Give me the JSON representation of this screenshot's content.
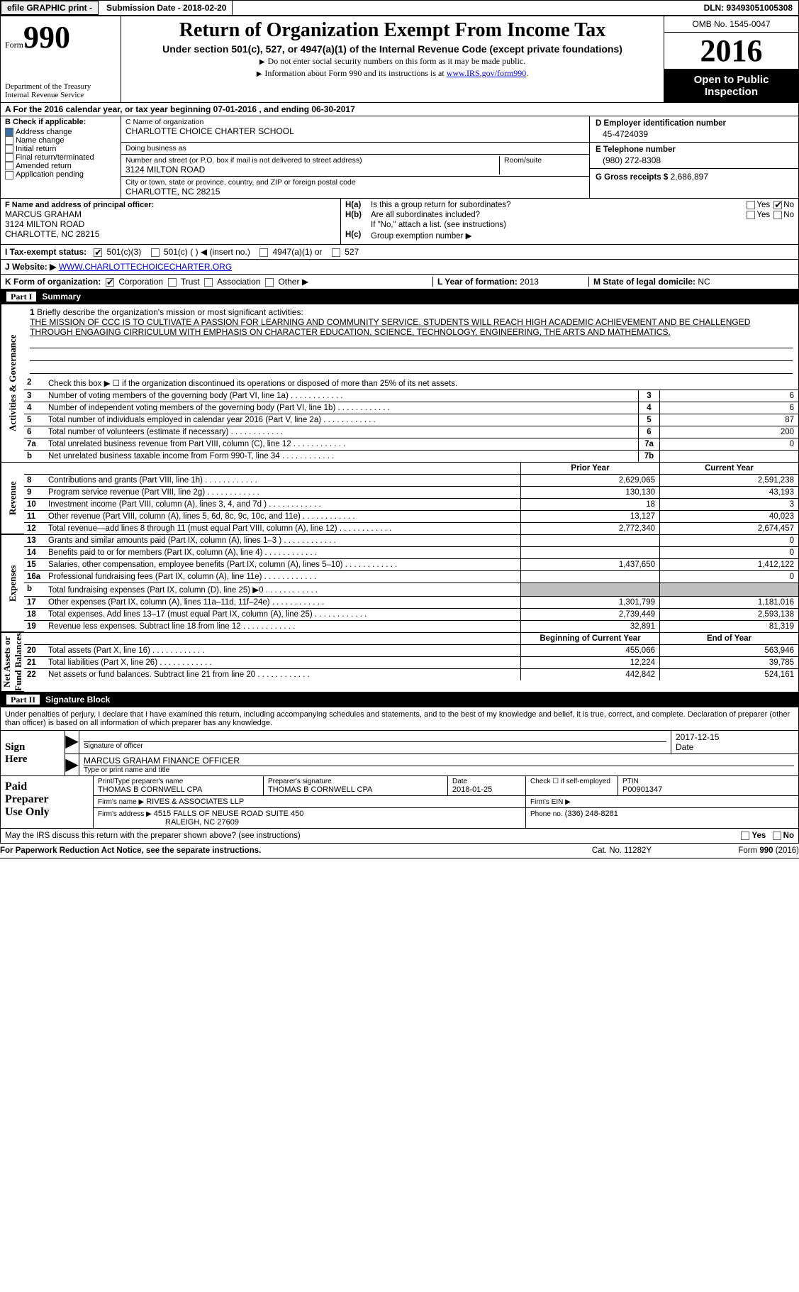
{
  "topbar": {
    "efile": "efile GRAPHIC print -",
    "submission": "Submission Date - 2018-02-20",
    "dln": "DLN: 93493051005308"
  },
  "header": {
    "form_word": "Form",
    "form_num": "990",
    "dept1": "Department of the Treasury",
    "dept2": "Internal Revenue Service",
    "title": "Return of Organization Exempt From Income Tax",
    "sub1": "Under section 501(c), 527, or 4947(a)(1) of the Internal Revenue Code (except private foundations)",
    "sub2a": "Do not enter social security numbers on this form as it may be made public.",
    "sub2b_pre": "Information about Form 990 and its instructions is at ",
    "sub2b_link": "www.IRS.gov/form990",
    "omb": "OMB No. 1545-0047",
    "year": "2016",
    "otp1": "Open to Public",
    "otp2": "Inspection"
  },
  "row_a": "A  For the 2016 calendar year, or tax year beginning 07-01-2016   , and ending 06-30-2017",
  "col_b": {
    "label": "B Check if applicable:",
    "opts": [
      "Address change",
      "Name change",
      "Initial return",
      "Final return/terminated",
      "Amended return",
      "Application pending"
    ],
    "checked_idx": 0
  },
  "col_c": {
    "name_hint": "C Name of organization",
    "name": "CHARLOTTE CHOICE CHARTER SCHOOL",
    "dba_hint": "Doing business as",
    "dba": "",
    "street_hint": "Number and street (or P.O. box if mail is not delivered to street address)",
    "street": "3124 MILTON ROAD",
    "room_hint": "Room/suite",
    "city_hint": "City or town, state or province, country, and ZIP or foreign postal code",
    "city": "CHARLOTTE, NC  28215"
  },
  "col_d": {
    "ein_lbl": "D Employer identification number",
    "ein": "45-4724039",
    "tel_lbl": "E Telephone number",
    "tel": "(980) 272-8308",
    "gross_lbl": "G Gross receipts $",
    "gross": "2,686,897"
  },
  "col_f": {
    "lbl": "F Name and address of principal officer:",
    "l1": "MARCUS GRAHAM",
    "l2": "3124 MILTON ROAD",
    "l3": "CHARLOTTE, NC  28215"
  },
  "col_h": {
    "ha_lbl": "H(a)",
    "ha_txt": "Is this a group return for subordinates?",
    "hb_lbl": "H(b)",
    "hb_txt": "Are all subordinates included?",
    "h_note": "If \"No,\" attach a list. (see instructions)",
    "hc_lbl": "H(c)",
    "hc_txt": "Group exemption number ▶",
    "yes": "Yes",
    "no": "No"
  },
  "row_i": {
    "lbl": "I   Tax-exempt status:",
    "o1": "501(c)(3)",
    "o2": "501(c) (   ) ◀ (insert no.)",
    "o3": "4947(a)(1) or",
    "o4": "527"
  },
  "row_j": {
    "lbl": "J  Website: ▶",
    "url": "WWW.CHARLOTTECHOICECHARTER.ORG"
  },
  "row_k": {
    "lbl": "K Form of organization:",
    "o1": "Corporation",
    "o2": "Trust",
    "o3": "Association",
    "o4": "Other ▶",
    "l_lbl": "L Year of formation:",
    "l_val": "2013",
    "m_lbl": "M State of legal domicile:",
    "m_val": "NC"
  },
  "part1": {
    "num": "Part I",
    "title": "Summary"
  },
  "sides": {
    "ag": "Activities & Governance",
    "rev": "Revenue",
    "exp": "Expenses",
    "na": "Net Assets or\nFund Balances"
  },
  "mission": {
    "num": "1",
    "lbl": "Briefly describe the organization's mission or most significant activities:",
    "txt": "THE MISSION OF CCC IS TO CULTIVATE A PASSION FOR LEARNING AND COMMUNITY SERVICE. STUDENTS WILL REACH HIGH ACADEMIC ACHIEVEMENT AND BE CHALLENGED THROUGH ENGAGING CIRRICULUM WITH EMPHASIS ON CHARACTER EDUCATION, SCIENCE, TECHNOLOGY, ENGINEERING, THE ARTS AND MATHEMATICS."
  },
  "lines_ag": [
    {
      "n": "2",
      "t": "Check this box ▶ ☐  if the organization discontinued its operations or disposed of more than 25% of its net assets.",
      "box": "",
      "v": ""
    },
    {
      "n": "3",
      "t": "Number of voting members of the governing body (Part VI, line 1a)",
      "box": "3",
      "v": "6"
    },
    {
      "n": "4",
      "t": "Number of independent voting members of the governing body (Part VI, line 1b)",
      "box": "4",
      "v": "6"
    },
    {
      "n": "5",
      "t": "Total number of individuals employed in calendar year 2016 (Part V, line 2a)",
      "box": "5",
      "v": "87"
    },
    {
      "n": "6",
      "t": "Total number of volunteers (estimate if necessary)",
      "box": "6",
      "v": "200"
    },
    {
      "n": "7a",
      "t": "Total unrelated business revenue from Part VIII, column (C), line 12",
      "box": "7a",
      "v": "0"
    },
    {
      "n": "b",
      "t": "Net unrelated business taxable income from Form 990-T, line 34",
      "box": "7b",
      "v": ""
    }
  ],
  "colhdr": {
    "c1": "Prior Year",
    "c2": "Current Year"
  },
  "lines_rev": [
    {
      "n": "8",
      "t": "Contributions and grants (Part VIII, line 1h)",
      "p": "2,629,065",
      "c": "2,591,238"
    },
    {
      "n": "9",
      "t": "Program service revenue (Part VIII, line 2g)",
      "p": "130,130",
      "c": "43,193"
    },
    {
      "n": "10",
      "t": "Investment income (Part VIII, column (A), lines 3, 4, and 7d )",
      "p": "18",
      "c": "3"
    },
    {
      "n": "11",
      "t": "Other revenue (Part VIII, column (A), lines 5, 6d, 8c, 9c, 10c, and 11e)",
      "p": "13,127",
      "c": "40,023"
    },
    {
      "n": "12",
      "t": "Total revenue—add lines 8 through 11 (must equal Part VIII, column (A), line 12)",
      "p": "2,772,340",
      "c": "2,674,457"
    }
  ],
  "lines_exp": [
    {
      "n": "13",
      "t": "Grants and similar amounts paid (Part IX, column (A), lines 1–3 )",
      "p": "",
      "c": "0"
    },
    {
      "n": "14",
      "t": "Benefits paid to or for members (Part IX, column (A), line 4)",
      "p": "",
      "c": "0"
    },
    {
      "n": "15",
      "t": "Salaries, other compensation, employee benefits (Part IX, column (A), lines 5–10)",
      "p": "1,437,650",
      "c": "1,412,122"
    },
    {
      "n": "16a",
      "t": "Professional fundraising fees (Part IX, column (A), line 11e)",
      "p": "",
      "c": "0"
    },
    {
      "n": "b",
      "t": "Total fundraising expenses (Part IX, column (D), line 25) ▶0",
      "p": "SHADE",
      "c": "SHADE"
    },
    {
      "n": "17",
      "t": "Other expenses (Part IX, column (A), lines 11a–11d, 11f–24e)",
      "p": "1,301,799",
      "c": "1,181,016"
    },
    {
      "n": "18",
      "t": "Total expenses. Add lines 13–17 (must equal Part IX, column (A), line 25)",
      "p": "2,739,449",
      "c": "2,593,138"
    },
    {
      "n": "19",
      "t": "Revenue less expenses. Subtract line 18 from line 12",
      "p": "32,891",
      "c": "81,319"
    }
  ],
  "colhdr2": {
    "c1": "Beginning of Current Year",
    "c2": "End of Year"
  },
  "lines_na": [
    {
      "n": "20",
      "t": "Total assets (Part X, line 16)",
      "p": "455,066",
      "c": "563,946"
    },
    {
      "n": "21",
      "t": "Total liabilities (Part X, line 26)",
      "p": "12,224",
      "c": "39,785"
    },
    {
      "n": "22",
      "t": "Net assets or fund balances. Subtract line 21 from line 20",
      "p": "442,842",
      "c": "524,161"
    }
  ],
  "part2": {
    "num": "Part II",
    "title": "Signature Block"
  },
  "perjury": "Under penalties of perjury, I declare that I have examined this return, including accompanying schedules and statements, and to the best of my knowledge and belief, it is true, correct, and complete. Declaration of preparer (other than officer) is based on all information of which preparer has any knowledge.",
  "sign": {
    "here": "Sign\nHere",
    "sig_hint": "Signature of officer",
    "date": "2017-12-15",
    "date_hint": "Date",
    "name": "MARCUS GRAHAM FINANCE OFFICER",
    "name_hint": "Type or print name and title"
  },
  "paid": {
    "lbl": "Paid\nPreparer\nUse Only",
    "r1": {
      "a_hint": "Print/Type preparer's name",
      "a": "THOMAS B CORNWELL CPA",
      "b_hint": "Preparer's signature",
      "b": "THOMAS B CORNWELL CPA",
      "c_hint": "Date",
      "c": "2018-01-25",
      "d_hint": "Check ☐ if self-employed",
      "e_hint": "PTIN",
      "e": "P00901347"
    },
    "r2": {
      "a_hint": "Firm's name    ▶",
      "a": "RIVES & ASSOCIATES LLP",
      "b_hint": "Firm's EIN ▶"
    },
    "r3": {
      "a_hint": "Firm's address ▶",
      "a1": "4515 FALLS OF NEUSE ROAD SUITE 450",
      "a2": "RALEIGH, NC  27609",
      "b_hint": "Phone no.",
      "b": "(336) 248-8281"
    }
  },
  "discuss": "May the IRS discuss this return with the preparer shown above? (see instructions)",
  "footer": {
    "l": "For Paperwork Reduction Act Notice, see the separate instructions.",
    "m": "Cat. No. 11282Y",
    "r": "Form 990 (2016)"
  }
}
